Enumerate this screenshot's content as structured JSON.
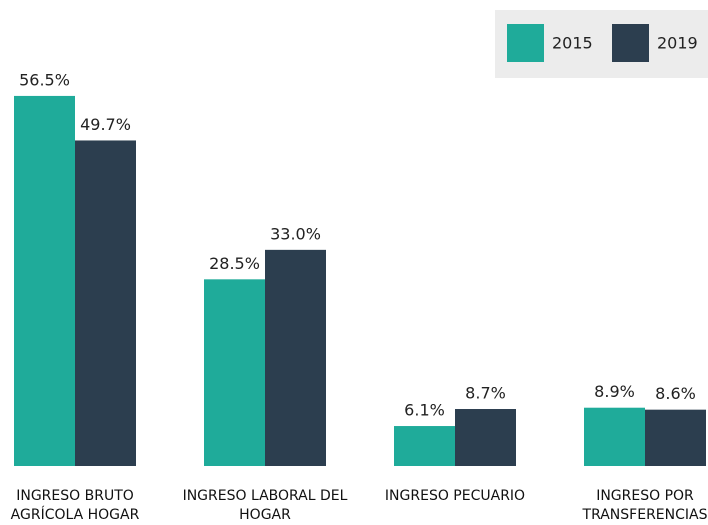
{
  "chart_data": {
    "type": "bar",
    "categories": [
      "INGRESO BRUTO AGRÍCOLA HOGAR",
      "INGRESO LABORAL DEL HOGAR",
      "INGRESO PECUARIO",
      "INGRESO POR TRANSFERENCIAS"
    ],
    "series": [
      {
        "name": "2015",
        "color": "#1fab9a",
        "values": [
          56.5,
          28.5,
          6.1,
          8.9
        ],
        "value_labels": [
          "56.5%",
          "28.5%",
          "6.1%",
          "8.9%"
        ]
      },
      {
        "name": "2019",
        "color": "#2c3e4f",
        "values": [
          49.7,
          33.0,
          8.7,
          8.6
        ],
        "value_labels": [
          "49.7%",
          "33.0%",
          "8.7%",
          "8.6%"
        ]
      }
    ],
    "legend": "top-right"
  }
}
